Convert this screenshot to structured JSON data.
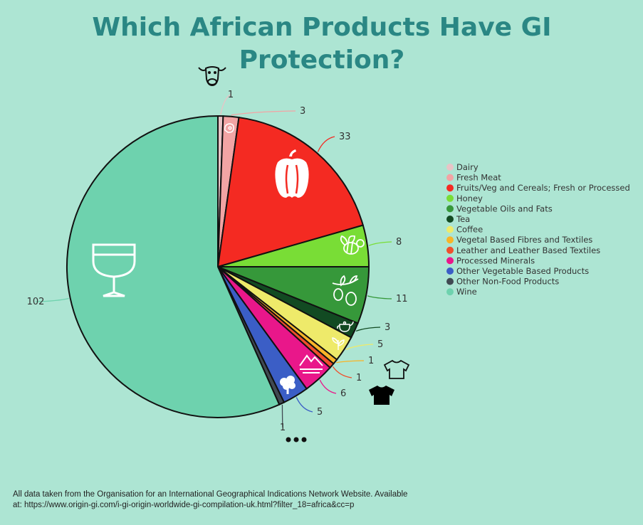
{
  "chart_data": {
    "type": "pie",
    "title_lines": [
      "Which African Products Have GI",
      "Protection?"
    ],
    "series": [
      {
        "name": "Dairy",
        "value": 1,
        "color": "#e8c4c6"
      },
      {
        "name": "Fresh Meat",
        "value": 3,
        "color": "#f2a4a4"
      },
      {
        "name": "Fruits/Veg and Cereals; Fresh or Processed",
        "value": 33,
        "color": "#f42a22"
      },
      {
        "name": "Honey",
        "value": 8,
        "color": "#79dd36"
      },
      {
        "name": "Vegetable Oils and Fats",
        "value": 11,
        "color": "#36983a"
      },
      {
        "name": "Tea",
        "value": 3,
        "color": "#124a22"
      },
      {
        "name": "Coffee",
        "value": 5,
        "color": "#eeea6a"
      },
      {
        "name": "Vegetal Based Fibres and Textiles",
        "value": 1,
        "color": "#f8b428"
      },
      {
        "name": "Leather and Leather Based Textiles",
        "value": 1,
        "color": "#ef4f2c"
      },
      {
        "name": "Processed Minerals",
        "value": 6,
        "color": "#e9178a"
      },
      {
        "name": "Other Vegetable Based Products",
        "value": 5,
        "color": "#3b5ec6"
      },
      {
        "name": "Other Non-Food Products",
        "value": 1,
        "color": "#404a52"
      },
      {
        "name": "Wine",
        "value": 102,
        "color": "#6ed2ae"
      }
    ],
    "legend_position": "right",
    "icons": [
      "cow-icon",
      "meat-icon",
      "bell-pepper-icon",
      "bee-icon",
      "olive-branch-icon",
      "teapot-icon",
      "coffee-plant-icon",
      "shirt-outline-icon",
      "shirt-filled-icon",
      "mountain-icon",
      "tree-icon",
      "ellipsis-icon",
      "wine-glass-icon"
    ]
  },
  "source_text": "All data taken from the Organisation for an International Geographical Indications Network Website. Available at: https://www.origin-gi.com/i-gi-origin-worldwide-gi-compilation-uk.html?filter_18=africa&cc=p"
}
